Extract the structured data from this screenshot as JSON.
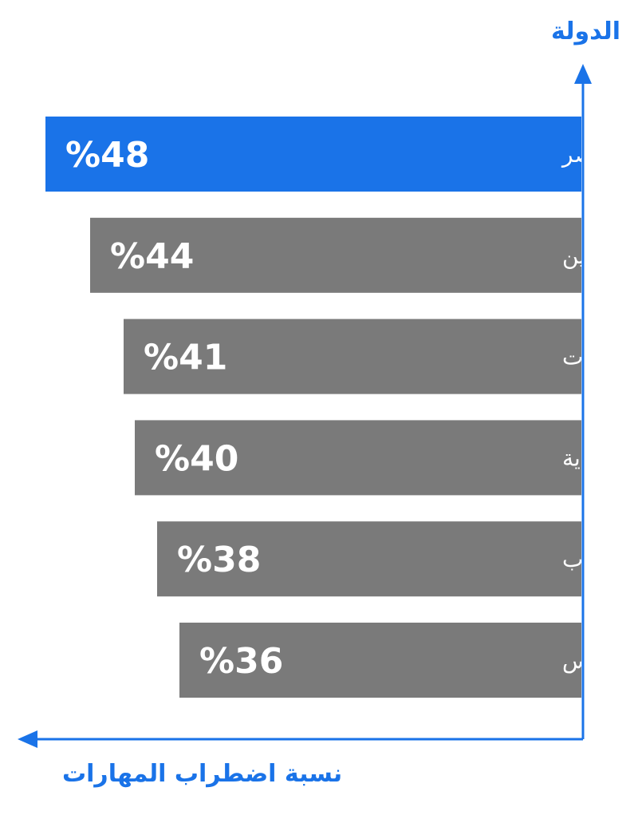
{
  "chart_data": {
    "type": "bar",
    "orientation": "horizontal",
    "direction": "rtl",
    "ylabel": "الدولة",
    "xlabel": "نسبة اضطراب المهارات",
    "categories": [
      "مصر",
      "البحرين",
      "الإمارات",
      "السعودية",
      "المغرب",
      "تونس"
    ],
    "values": [
      48,
      44,
      41,
      40,
      38,
      36
    ],
    "value_labels": [
      "%48",
      "%44",
      "%41",
      "%40",
      "%38",
      "%36"
    ],
    "unit": "%",
    "xlim": [
      0,
      48
    ],
    "grid": false,
    "highlight_index": 0,
    "colors": {
      "highlight": "#1a73e8",
      "default": "#7a7a7a",
      "axis": "#1a73e8",
      "label": "#ffffff"
    }
  }
}
